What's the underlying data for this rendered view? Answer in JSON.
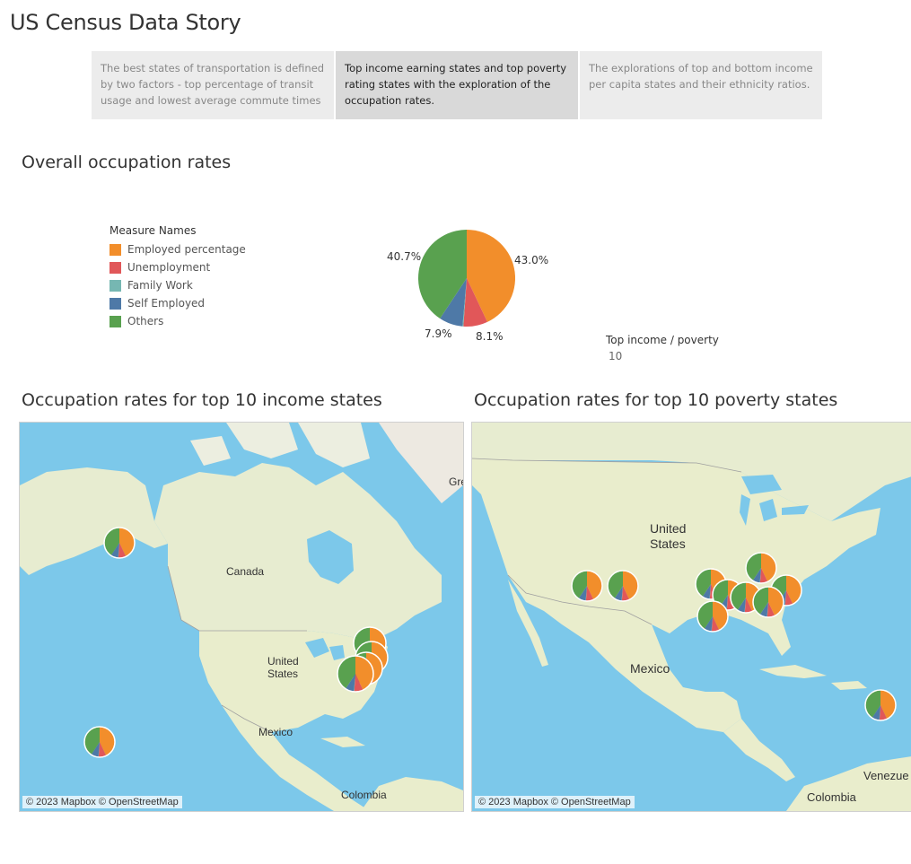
{
  "story": {
    "title": "US Census Data Story",
    "points": [
      {
        "text": "The best states of transportation is defined by two factors - top percentage of transit usage and lowest average commute times",
        "active": false
      },
      {
        "text": "Top income earning states and top poverty rating states with the exploration of the occupation rates.",
        "active": true
      },
      {
        "text": "The explorations of top and bottom income per capita states and their ethnicity ratios.",
        "active": false
      }
    ]
  },
  "overall": {
    "title": "Overall occupation rates",
    "legend_title": "Measure Names",
    "legend": [
      {
        "name": "Employed percentage",
        "color": "#f28e2b"
      },
      {
        "name": "Unemployment",
        "color": "#e15759"
      },
      {
        "name": "Family Work",
        "color": "#76b7b2"
      },
      {
        "name": "Self Employed",
        "color": "#4e79a7"
      },
      {
        "name": "Others",
        "color": "#59a14f"
      }
    ]
  },
  "chart_data": {
    "type": "pie",
    "slices": [
      {
        "name": "Employed percentage",
        "value": 43.0,
        "label": "43.0%",
        "color": "#f28e2b"
      },
      {
        "name": "Unemployment",
        "value": 8.1,
        "label": "8.1%",
        "color": "#e15759"
      },
      {
        "name": "Family Work",
        "value": 0.3,
        "label": "",
        "color": "#76b7b2"
      },
      {
        "name": "Self Employed",
        "value": 7.9,
        "label": "7.9%",
        "color": "#4e79a7"
      },
      {
        "name": "Others",
        "value": 40.7,
        "label": "40.7%",
        "color": "#59a14f"
      }
    ]
  },
  "parameter": {
    "label": "Top income / poverty",
    "value": "10"
  },
  "maps": {
    "income": {
      "title": "Occupation rates for top 10 income states",
      "labels": [
        "Canada",
        "United",
        "States",
        "Mexico",
        "Colombia",
        "Gre"
      ],
      "attribution": "© 2023 Mapbox © OpenStreetMap"
    },
    "poverty": {
      "title": "Occupation rates for top 10 poverty states",
      "labels": [
        "United",
        "States",
        "Mexico",
        "Colombia",
        "Venezue"
      ],
      "attribution": "© 2023 Mapbox © OpenStreetMap"
    }
  }
}
